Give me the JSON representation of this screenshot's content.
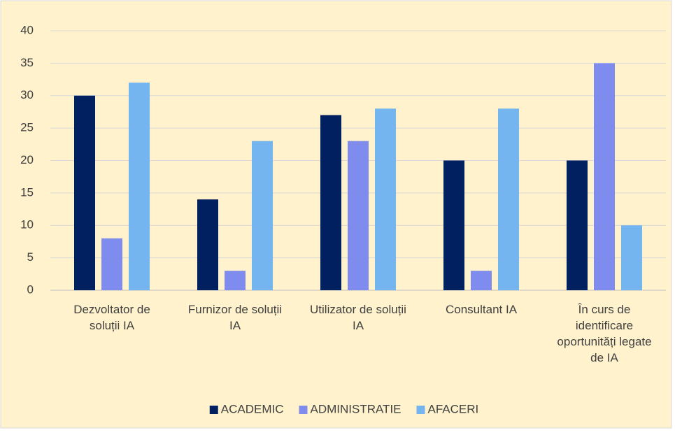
{
  "chart_data": {
    "type": "bar",
    "categories": [
      "Dezvoltator de soluții IA",
      "Furnizor de soluții IA",
      "Utilizator de soluții IA",
      "Consultant IA",
      "În curs de identificare oportunități legate de IA"
    ],
    "series": [
      {
        "name": "ACADEMIC",
        "color": "#002060",
        "values": [
          30,
          14,
          27,
          20,
          20
        ]
      },
      {
        "name": "ADMINISTRATIE",
        "color": "#7f8cee",
        "values": [
          8,
          3,
          23,
          3,
          35
        ]
      },
      {
        "name": "AFACERI",
        "color": "#75b5ef",
        "values": [
          32,
          23,
          28,
          28,
          10
        ]
      }
    ],
    "ylim": [
      0,
      40
    ],
    "yticks": [
      0,
      5,
      10,
      15,
      20,
      25,
      30,
      35,
      40
    ],
    "grid": true,
    "legend": "bottom"
  }
}
